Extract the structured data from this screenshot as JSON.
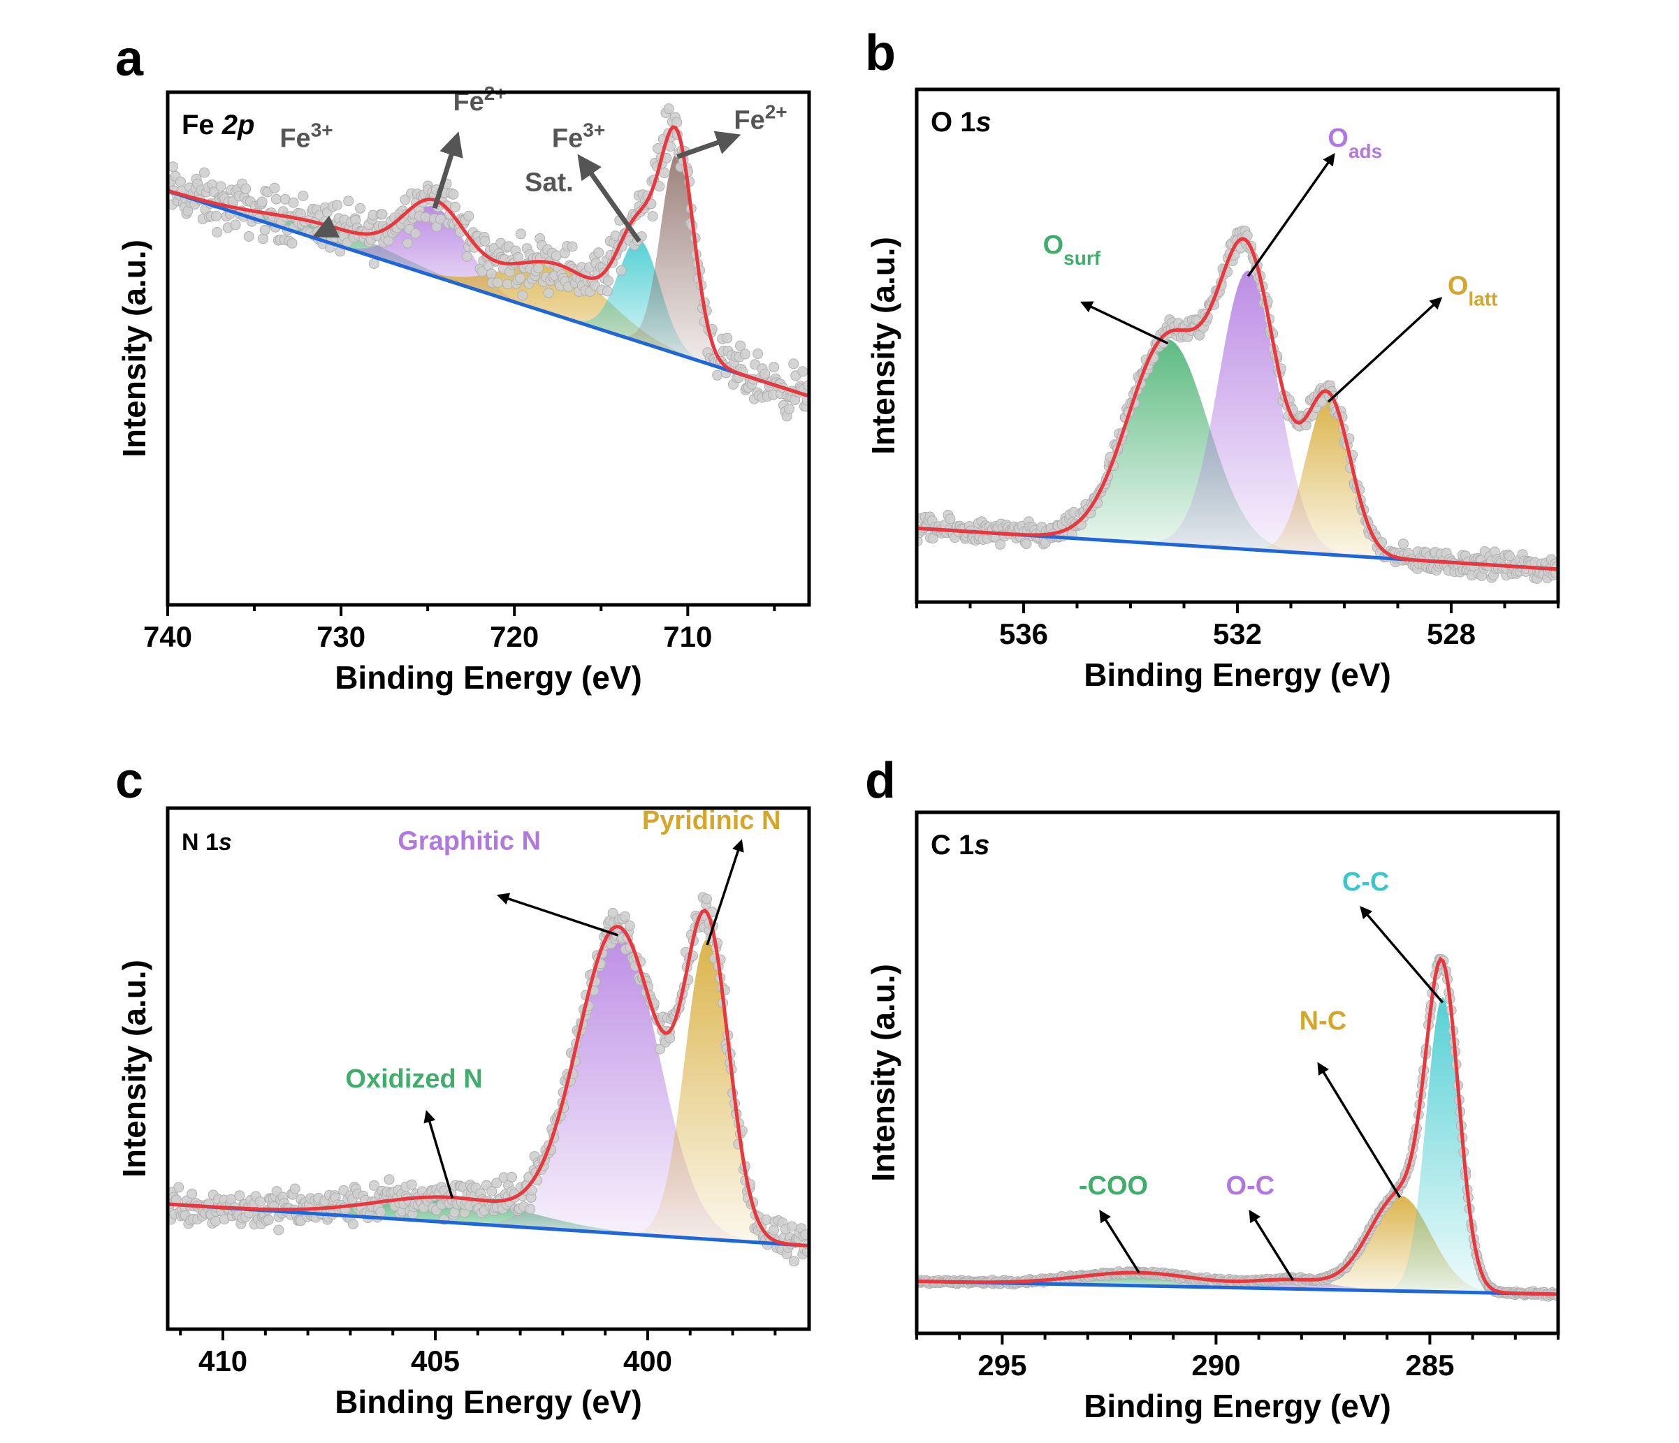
{
  "colors": {
    "fit": "#e8383d",
    "baseline": "#1f66d9",
    "points": "#cfcfcf",
    "point_edge": "#b0b0b0",
    "green": "#3fae6a",
    "purple": "#b078e0",
    "gold": "#d4a72c",
    "cyan": "#36c8cc",
    "brown": "#8a6a63",
    "annot_dark": "#555555"
  },
  "chart_data": [
    {
      "panel": "a",
      "type": "line",
      "title": "Fe 2p",
      "title_parts": [
        "Fe ",
        "2p"
      ],
      "xlabel": "Binding Energy (eV)",
      "ylabel": "Intensity (a.u.)",
      "xlim": [
        740,
        703
      ],
      "ylim": [
        -0.35,
        1.05
      ],
      "xticks": [
        740,
        730,
        720,
        710
      ],
      "minor_step": 5,
      "baseline": [
        0.78,
        0.22
      ],
      "noise": 0.06,
      "peaks": [
        {
          "center": 730.5,
          "amp": 0.045,
          "width": 3.6,
          "color": "green",
          "label_base": "Fe",
          "label_sup": "3+",
          "arrow_to": [
            731.4,
            0.66
          ],
          "label_pos": [
            732,
            0.9
          ],
          "annot_color": "annot_dark"
        },
        {
          "center": 724.6,
          "amp": 0.19,
          "width": 1.8,
          "color": "purple",
          "label_base": "Fe",
          "label_sup": "2+",
          "arrow_to": [
            723.3,
            0.93
          ],
          "label_pos": [
            722,
            1.0
          ],
          "annot_color": "annot_dark"
        },
        {
          "center": 717.5,
          "amp": 0.14,
          "width": 2.9,
          "color": "gold",
          "label_base": "Sat.",
          "label_sup": "",
          "arrow_to": null,
          "label_pos": [
            718,
            0.78
          ],
          "annot_color": "annot_dark"
        },
        {
          "center": 712.8,
          "amp": 0.28,
          "width": 1.2,
          "color": "cyan",
          "label_base": "Fe",
          "label_sup": "3+",
          "arrow_to": [
            716.2,
            0.87
          ],
          "label_pos": [
            716.3,
            0.9
          ],
          "annot_color": "annot_dark"
        },
        {
          "center": 710.6,
          "amp": 0.55,
          "width": 0.95,
          "color": "brown",
          "label_base": "Fe",
          "label_sup": "2+",
          "arrow_to": [
            707.2,
            0.93
          ],
          "label_pos": [
            705.8,
            0.95
          ],
          "annot_color": "annot_dark"
        }
      ]
    },
    {
      "panel": "b",
      "type": "line",
      "title": "O 1s",
      "title_parts": [
        "O 1",
        "s"
      ],
      "xlabel": "Binding Energy (eV)",
      "ylabel": "Intensity (a.u.)",
      "xlim": [
        538,
        526
      ],
      "ylim": [
        -0.15,
        1.1
      ],
      "xticks": [
        536,
        532,
        528
      ],
      "minor_step": 1,
      "baseline": [
        0.03,
        -0.07
      ],
      "noise": 0.025,
      "peaks": [
        {
          "center": 533.3,
          "amp": 0.5,
          "width": 0.75,
          "color": "green",
          "label_base": "O",
          "label_sup": "",
          "label_sub": "surf",
          "arrow_to": [
            534.9,
            0.58
          ],
          "label_pos": [
            535.1,
            0.7
          ],
          "annot_color": "green"
        },
        {
          "center": 531.8,
          "amp": 0.68,
          "width": 0.55,
          "color": "purple",
          "label_base": "O",
          "label_sup": "",
          "label_sub": "ads",
          "arrow_to": [
            530.2,
            0.94
          ],
          "label_pos": [
            529.8,
            0.96
          ],
          "annot_color": "purple"
        },
        {
          "center": 530.3,
          "amp": 0.38,
          "width": 0.42,
          "color": "gold",
          "label_base": "O",
          "label_sup": "",
          "label_sub": "latt",
          "arrow_to": [
            528.2,
            0.59
          ],
          "label_pos": [
            527.6,
            0.6
          ],
          "annot_color": "gold"
        }
      ]
    },
    {
      "panel": "c",
      "type": "line",
      "title": "N 1s",
      "title_parts": [
        "N 1",
        "s"
      ],
      "xlabel": "Binding Energy (eV)",
      "ylabel": "Intensity (a.u.)",
      "xlim": [
        411.3,
        396.2
      ],
      "ylim": [
        -0.2,
        1.05
      ],
      "xticks": [
        410,
        405,
        400
      ],
      "minor_step": 1,
      "baseline": [
        0.1,
        0.0
      ],
      "noise": 0.04,
      "peaks": [
        {
          "center": 404.6,
          "amp": 0.06,
          "width": 1.8,
          "color": "green",
          "label_base": "Oxidized N",
          "label_sup": "",
          "arrow_to": [
            405.2,
            0.32
          ],
          "label_pos": [
            405.5,
            0.38
          ],
          "annot_color": "green"
        },
        {
          "center": 400.7,
          "amp": 0.73,
          "width": 0.95,
          "color": "purple",
          "label_base": "Graphitic N",
          "label_sup": "",
          "arrow_to": [
            403.5,
            0.84
          ],
          "label_pos": [
            404.2,
            0.95
          ],
          "annot_color": "purple"
        },
        {
          "center": 398.6,
          "amp": 0.72,
          "width": 0.52,
          "color": "gold",
          "label_base": "Pyridinic N",
          "label_sup": "",
          "arrow_to": [
            397.8,
            0.97
          ],
          "label_pos": [
            398.5,
            1.0
          ],
          "annot_color": "gold"
        }
      ]
    },
    {
      "panel": "d",
      "type": "line",
      "title": "C 1s",
      "title_parts": [
        "C 1",
        "s"
      ],
      "xlabel": "Binding Energy (eV)",
      "ylabel": "Intensity (a.u.)",
      "xlim": [
        297,
        282
      ],
      "ylim": [
        -0.1,
        1.1
      ],
      "xticks": [
        295,
        290,
        285
      ],
      "minor_step": 1,
      "baseline": [
        0.02,
        -0.01
      ],
      "noise": 0.004,
      "peaks": [
        {
          "center": 291.8,
          "amp": 0.03,
          "width": 1.4,
          "color": "green",
          "label_base": "-COO",
          "label_sup": "",
          "arrow_to": [
            292.7,
            0.18
          ],
          "label_pos": [
            292.4,
            0.22
          ],
          "annot_color": "green"
        },
        {
          "center": 288.2,
          "amp": 0.02,
          "width": 0.9,
          "color": "purple",
          "label_base": "O-C",
          "label_sup": "",
          "arrow_to": [
            289.2,
            0.18
          ],
          "label_pos": [
            289.2,
            0.22
          ],
          "annot_color": "purple"
        },
        {
          "center": 285.7,
          "amp": 0.22,
          "width": 0.72,
          "color": "gold",
          "label_base": "N-C",
          "label_sup": "",
          "arrow_to": [
            287.6,
            0.52
          ],
          "label_pos": [
            287.5,
            0.6
          ],
          "annot_color": "gold"
        },
        {
          "center": 284.7,
          "amp": 0.68,
          "width": 0.38,
          "color": "cyan",
          "label_base": "C-C",
          "label_sup": "",
          "arrow_to": [
            286.6,
            0.88
          ],
          "label_pos": [
            286.5,
            0.92
          ],
          "annot_color": "cyan"
        }
      ]
    }
  ],
  "panels": {
    "a": {
      "letter": "a",
      "title": "Fe 2p"
    },
    "b": {
      "letter": "b",
      "title": "O 1s"
    },
    "c": {
      "letter": "c",
      "title": "N 1s"
    },
    "d": {
      "letter": "d",
      "title": "C 1s"
    }
  }
}
